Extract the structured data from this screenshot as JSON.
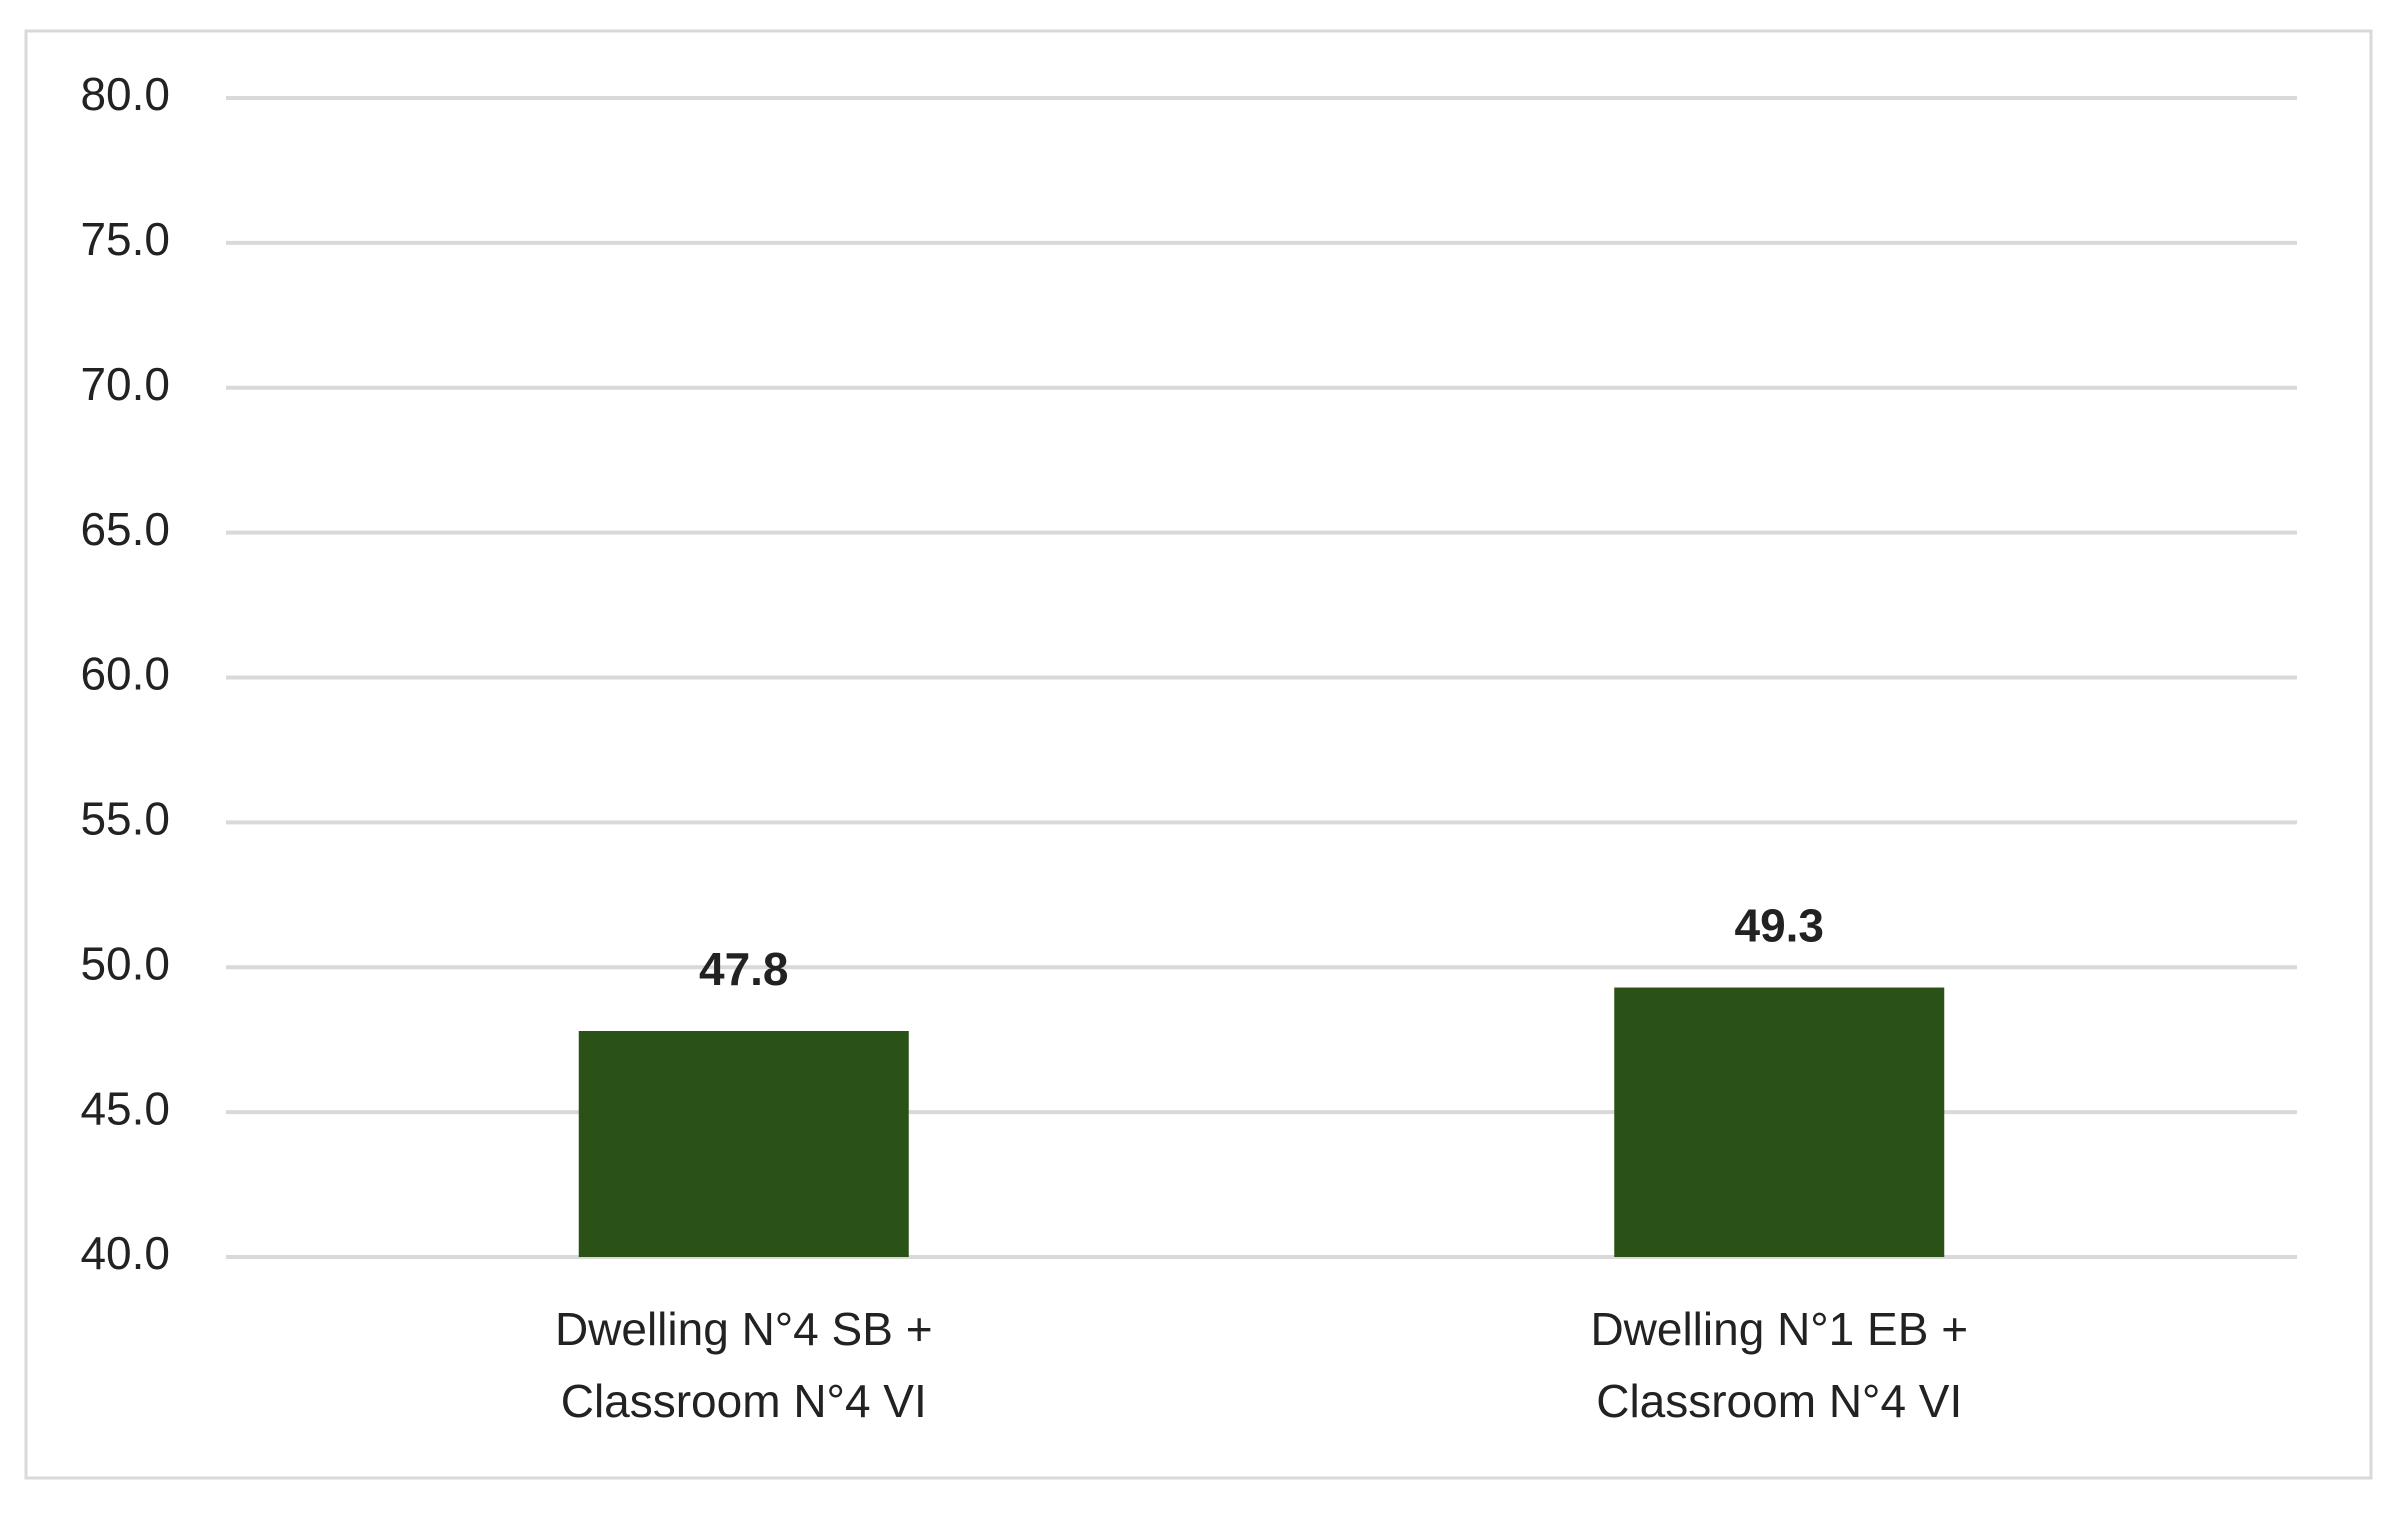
{
  "chart_data": {
    "type": "bar",
    "categories": [
      "Dwelling N°4 SB + Classroom N°4 VI",
      "Dwelling N°1 EB + Classroom N°4 VI"
    ],
    "values": [
      47.8,
      49.3
    ],
    "color": "#2b5216",
    "ylim": [
      40,
      80
    ],
    "yticks": [
      {
        "value": 40,
        "label": "40.0"
      },
      {
        "value": 45,
        "label": "45.0"
      },
      {
        "value": 50,
        "label": "50.0"
      },
      {
        "value": 55,
        "label": "55.0"
      },
      {
        "value": 60,
        "label": "60.0"
      },
      {
        "value": 65,
        "label": "65.0"
      },
      {
        "value": 70,
        "label": "70.0"
      },
      {
        "value": 75,
        "label": "75.0"
      },
      {
        "value": 80,
        "label": "80.0"
      }
    ],
    "grid": true
  }
}
